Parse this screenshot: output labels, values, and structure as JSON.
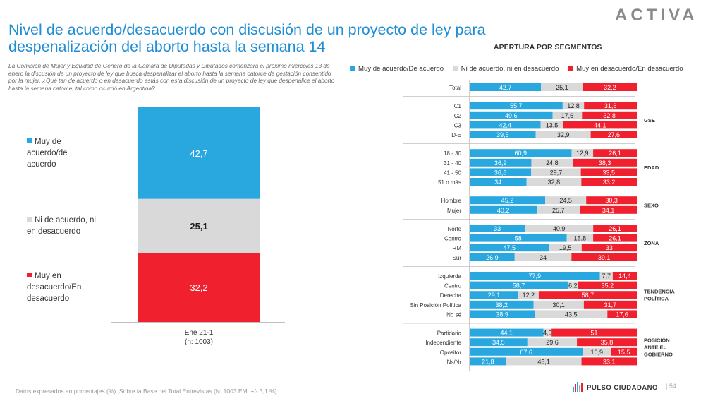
{
  "title": "Nivel de acuerdo/desacuerdo con discusión de un proyecto de ley para despenalización del aborto hasta la semana 14",
  "brand_logo": "ACTIVA",
  "description": "La Comisión de Mujer y Equidad de Género de la Cámara de Diputadas y Diputados comenzará el próximo miércoles 13 de enero la discusión de un proyecto de ley que busca despenalizar el aborto hasta la semana catorce de gestación consentido por la mujer. ¿Qué tan de acuerdo o en desacuerdo estás con esta discusión de un proyecto de ley que despenalice el aborto hasta la semana catorce, tal como ocurrió en Argentina?",
  "footnote": "Datos expresados en porcentajes (%). Sobre la Base del Total Entrevistas (N: 1003  EM: +/- 3,1 %)",
  "footer_brand": "PULSO CIUDADANO",
  "page_number": "54",
  "colors": {
    "agree": "#29a8e0",
    "neutral": "#d9d9d9",
    "disagree": "#f0202e",
    "title": "#1f8ed6"
  },
  "chart_data": [
    {
      "type": "bar",
      "stacked": true,
      "orientation": "vertical",
      "categories": [
        "Ene 21-1 (n: 1003)"
      ],
      "category_lines": [
        "Ene 21-1",
        "(n: 1003)"
      ],
      "series": [
        {
          "name": "Muy de acuerdo/de acuerdo",
          "values": [
            42.7
          ],
          "label_text": "42,7"
        },
        {
          "name": "Ni de acuerdo, ni en desacuerdo",
          "values": [
            25.1
          ],
          "label_text": "25,1"
        },
        {
          "name": "Muy en desacuerdo/En desacuerdo",
          "values": [
            32.2
          ],
          "label_text": "32,2"
        }
      ],
      "legend_labels": [
        [
          "Muy de",
          "acuerdo/de",
          "acuerdo"
        ],
        [
          "Ni de acuerdo, ni",
          "en desacuerdo"
        ],
        [
          "Muy en",
          "desacuerdo/En",
          "desacuerdo"
        ]
      ],
      "ylim": [
        0,
        100
      ]
    },
    {
      "type": "bar",
      "stacked": true,
      "orientation": "horizontal",
      "title": "APERTURA POR SEGMENTOS",
      "legend": [
        "Muy de acuerdo/De acuerdo",
        "Ni de acuerdo, ni en desacuerdo",
        "Muy en desacuerdo/En desacuerdo"
      ],
      "xlim": [
        0,
        100
      ],
      "groups": [
        {
          "label": [],
          "rows": [
            {
              "label": "Total",
              "values": [
                42.7,
                25.1,
                32.2
              ],
              "labels": [
                "42,7",
                "25,1",
                "32,2"
              ]
            }
          ]
        },
        {
          "label": [
            "GSE"
          ],
          "rows": [
            {
              "label": "C1",
              "values": [
                55.7,
                12.8,
                31.6
              ],
              "labels": [
                "55,7",
                "12,8",
                "31,6"
              ]
            },
            {
              "label": "C2",
              "values": [
                49.6,
                17.6,
                32.8
              ],
              "labels": [
                "49,6",
                "17,6",
                "32,8"
              ]
            },
            {
              "label": "C3",
              "values": [
                42.4,
                13.5,
                44.1
              ],
              "labels": [
                "42,4",
                "13,5",
                "44,1"
              ]
            },
            {
              "label": "D-E",
              "values": [
                39.5,
                32.9,
                27.6
              ],
              "labels": [
                "39,5",
                "32,9",
                "27,6"
              ]
            }
          ]
        },
        {
          "label": [
            "EDAD"
          ],
          "rows": [
            {
              "label": "18 - 30",
              "values": [
                60.9,
                12.9,
                26.1
              ],
              "labels": [
                "60,9",
                "12,9",
                "26,1"
              ]
            },
            {
              "label": "31 - 40",
              "values": [
                36.9,
                24.8,
                38.3
              ],
              "labels": [
                "36,9",
                "24,8",
                "38,3"
              ]
            },
            {
              "label": "41 - 50",
              "values": [
                36.8,
                29.7,
                33.5
              ],
              "labels": [
                "36,8",
                "29,7",
                "33,5"
              ]
            },
            {
              "label": "51 o más",
              "values": [
                34,
                32.8,
                33.2
              ],
              "labels": [
                "34",
                "32,8",
                "33,2"
              ]
            }
          ]
        },
        {
          "label": [
            "SEXO"
          ],
          "rows": [
            {
              "label": "Hombre",
              "values": [
                45.2,
                24.5,
                30.3
              ],
              "labels": [
                "45,2",
                "24,5",
                "30,3"
              ]
            },
            {
              "label": "Mujer",
              "values": [
                40.2,
                25.7,
                34.1
              ],
              "labels": [
                "40,2",
                "25,7",
                "34,1"
              ]
            }
          ]
        },
        {
          "label": [
            "ZONA"
          ],
          "rows": [
            {
              "label": "Norte",
              "values": [
                33,
                40.9,
                26.1
              ],
              "labels": [
                "33",
                "40,9",
                "26,1"
              ]
            },
            {
              "label": "Centro",
              "values": [
                58,
                15.8,
                26.1
              ],
              "labels": [
                "58",
                "15,8",
                "26,1"
              ]
            },
            {
              "label": "RM",
              "values": [
                47.5,
                19.5,
                33
              ],
              "labels": [
                "47,5",
                "19,5",
                "33"
              ]
            },
            {
              "label": "Sur",
              "values": [
                26.9,
                34,
                39.1
              ],
              "labels": [
                "26,9",
                "34",
                "39,1"
              ]
            }
          ]
        },
        {
          "label": [
            "TENDENCIA",
            "POLÍTICA"
          ],
          "rows": [
            {
              "label": "Izquierda",
              "values": [
                77.9,
                7.7,
                14.4
              ],
              "labels": [
                "77,9",
                "7,7",
                "14,4"
              ]
            },
            {
              "label": "Centro",
              "values": [
                58.7,
                6.2,
                35.2
              ],
              "labels": [
                "58,7",
                "6,2",
                "35,2"
              ]
            },
            {
              "label": "Derecha",
              "values": [
                29.1,
                12.2,
                58.7
              ],
              "labels": [
                "29,1",
                "12,2",
                "58,7"
              ]
            },
            {
              "label": "Sin Posición Política",
              "values": [
                38.2,
                30.1,
                31.7
              ],
              "labels": [
                "38,2",
                "30,1",
                "31,7"
              ]
            },
            {
              "label": "No sé",
              "values": [
                38.9,
                43.5,
                17.6
              ],
              "labels": [
                "38,9",
                "43,5",
                "17,6"
              ]
            }
          ]
        },
        {
          "label": [
            "POSICIÓN",
            "ANTE EL",
            "GOBIERNO"
          ],
          "rows": [
            {
              "label": "Partidario",
              "values": [
                44.1,
                4.9,
                51
              ],
              "labels": [
                "44,1",
                "4,9",
                "51"
              ]
            },
            {
              "label": "Independiente",
              "values": [
                34.5,
                29.6,
                35.8
              ],
              "labels": [
                "34,5",
                "29,6",
                "35,8"
              ]
            },
            {
              "label": "Opositor",
              "values": [
                67.6,
                16.9,
                15.5
              ],
              "labels": [
                "67,6",
                "16,9",
                "15,5"
              ]
            },
            {
              "label": "Ns/Nr",
              "values": [
                21.8,
                45.1,
                33.1
              ],
              "labels": [
                "21,8",
                "45,1",
                "33,1"
              ]
            }
          ]
        }
      ]
    }
  ]
}
